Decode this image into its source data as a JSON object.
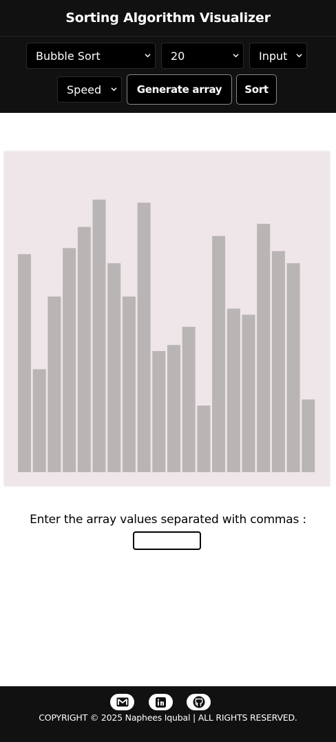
{
  "header": {
    "title": "Sorting Algorithm Visualizer",
    "algorithm_select": "Bubble Sort",
    "size_select": "20",
    "mode_select": "Input",
    "speed_select": "Speed",
    "generate_label": "Generate array",
    "sort_label": "Sort"
  },
  "chart_data": {
    "type": "bar",
    "values": [
      72,
      34,
      58,
      74,
      81,
      90,
      69,
      58,
      89,
      40,
      42,
      48,
      22,
      78,
      54,
      52,
      82,
      73,
      69,
      24
    ],
    "bar_color": "#bab5b5",
    "background": "#efe6ea"
  },
  "main": {
    "prompt": "Enter the array values separated with commas :",
    "array_input_value": ""
  },
  "footer": {
    "icons": [
      "gmail-icon",
      "linkedin-icon",
      "github-icon"
    ],
    "copyright": "COPYRIGHT © 2025 Naphees Iqubal | ALL RIGHTS RESERVED."
  }
}
